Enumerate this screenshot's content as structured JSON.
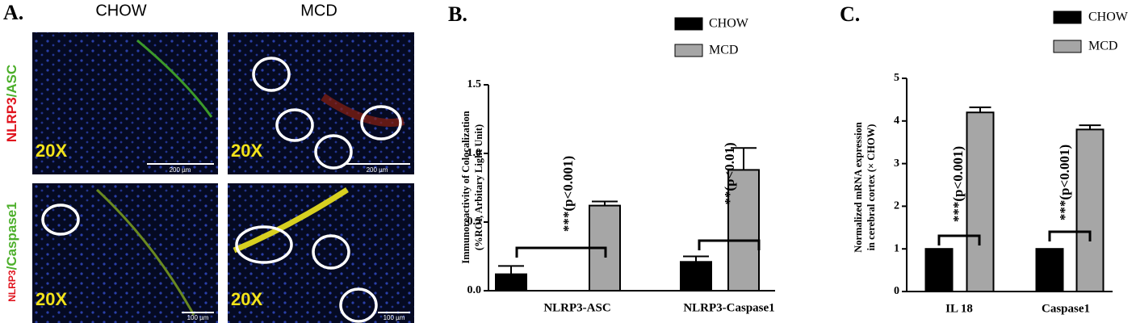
{
  "panel_a": {
    "letter": "A.",
    "column_labels": [
      "CHOW",
      "MCD"
    ],
    "row_labels": [
      {
        "red": "NLRP3",
        "green": "/ASC"
      },
      {
        "red": "NLRP3",
        "green": "/Caspase1"
      }
    ],
    "magnifications": [
      "20X",
      "20X",
      "20X",
      "20X"
    ],
    "scale_bars": [
      "200 µm",
      "200 µm",
      "100 µm",
      "100 µm"
    ]
  },
  "chart_data": [
    {
      "type": "bar",
      "title": "B.",
      "y_label": [
        "Immunoreactivity of Colocalization",
        "(%ROI, Arbitary Light Unit)"
      ],
      "categories": [
        "NLRP3-ASC",
        "NLRP3-Caspase1"
      ],
      "series": [
        {
          "name": "CHOW",
          "color": "#000000",
          "values": [
            0.12,
            0.21
          ],
          "errors": [
            0.06,
            0.04
          ]
        },
        {
          "name": "MCD",
          "color": "#a6a6a6",
          "values": [
            0.62,
            0.88
          ],
          "errors": [
            0.03,
            0.16
          ]
        }
      ],
      "ylim": [
        0,
        1.5
      ],
      "yticks": [
        {
          "value": 0,
          "label": "0.0"
        },
        0.5,
        {
          "value": 1,
          "label": "1.0"
        },
        1.5
      ],
      "annotations": [
        "***(p<0.001)",
        "**(p<0.01)"
      ]
    },
    {
      "type": "bar",
      "title": "C.",
      "y_label": [
        "Normalized mRNA expression",
        "in cerebral cortex (× CHOW)"
      ],
      "categories": [
        "IL 18",
        "Caspase1"
      ],
      "series": [
        {
          "name": "CHOW",
          "color": "#000000",
          "values": [
            1,
            1
          ]
        },
        {
          "name": "MCD",
          "color": "#a6a6a6",
          "values": [
            4.2,
            3.8
          ],
          "errors": [
            0.12,
            0.1
          ]
        }
      ],
      "ylim": [
        0,
        5
      ],
      "yticks": [
        0,
        1,
        2,
        3,
        4,
        5
      ],
      "annotations": [
        "***(p<0.001)",
        "***(p<0.001)"
      ]
    }
  ]
}
